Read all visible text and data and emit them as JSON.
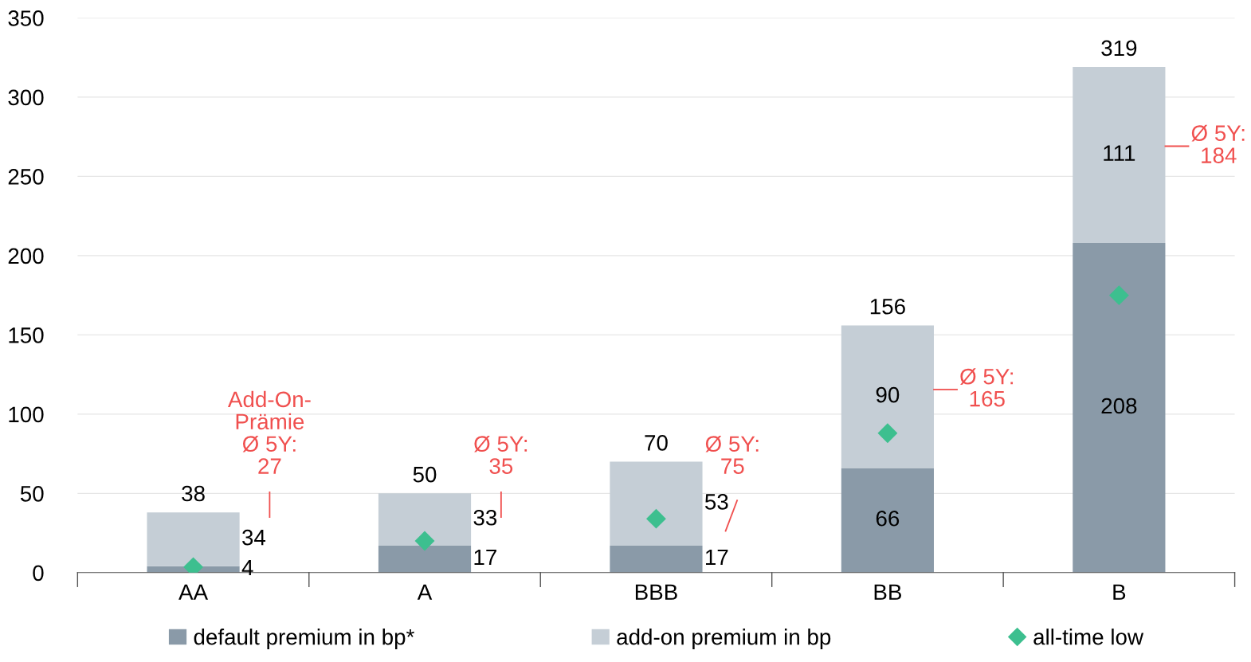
{
  "chart_data": {
    "type": "bar",
    "stacked": true,
    "categories": [
      "AA",
      "A",
      "BBB",
      "BB",
      "B"
    ],
    "series": [
      {
        "name": "default premium in bp*",
        "color": "#8a9aa8",
        "values": [
          4,
          17,
          17,
          66,
          208
        ],
        "value_labels": [
          "4",
          "17",
          "17",
          "66",
          "208"
        ]
      },
      {
        "name": "add-on premium in bp",
        "color": "#c5ced6",
        "values": [
          34,
          33,
          53,
          90,
          111
        ],
        "value_labels": [
          "34",
          "33",
          "53",
          "90",
          "111"
        ]
      },
      {
        "name": "all-time low",
        "type": "scatter",
        "color": "#3dbf8f",
        "marker": "diamond",
        "x": [
          "AA",
          "A",
          "BBB",
          "BB",
          "B"
        ],
        "values": [
          3.5,
          20,
          34,
          88,
          175
        ]
      }
    ],
    "totals": [
      "38",
      "50",
      "70",
      "156",
      "319"
    ],
    "ylim": [
      0,
      350
    ],
    "yticks": [
      0,
      50,
      100,
      150,
      200,
      250,
      300,
      350
    ],
    "grid": "y",
    "legend": "bottom",
    "annotations": [
      "Add-On-\nPrämie\nØ 5Y:\n27",
      "Ø 5Y:\n35",
      "Ø 5Y:\n75",
      "Ø 5Y:\n165",
      "Ø 5Y:\n184"
    ]
  }
}
